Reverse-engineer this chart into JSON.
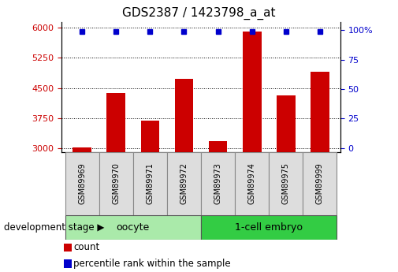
{
  "title": "GDS2387 / 1423798_a_at",
  "samples": [
    "GSM89969",
    "GSM89970",
    "GSM89971",
    "GSM89972",
    "GSM89973",
    "GSM89974",
    "GSM89975",
    "GSM89999"
  ],
  "counts": [
    3030,
    4380,
    3680,
    4720,
    3180,
    5900,
    4320,
    4900
  ],
  "percentile_ranks": [
    99,
    99,
    99,
    99,
    99,
    99,
    99,
    99
  ],
  "groups": [
    {
      "label": "oocyte",
      "n_samples": 4,
      "color": "#AAEAAA"
    },
    {
      "label": "1-cell embryo",
      "n_samples": 4,
      "color": "#33CC44"
    }
  ],
  "ylim_left": [
    2900,
    6150
  ],
  "yticks_left": [
    3000,
    3750,
    4500,
    5250,
    6000
  ],
  "ylim_right": [
    -3.5,
    107
  ],
  "yticks_right": [
    0,
    25,
    50,
    75,
    100
  ],
  "bar_color_red": "#CC0000",
  "dot_color_blue": "#0000CC",
  "xlabel_stage": "development stage",
  "legend_count_label": "count",
  "legend_percentile_label": "percentile rank within the sample",
  "title_fontsize": 11,
  "tick_fontsize": 8,
  "label_fontsize": 8.5,
  "sample_label_fontsize": 7,
  "group_fontsize": 9
}
